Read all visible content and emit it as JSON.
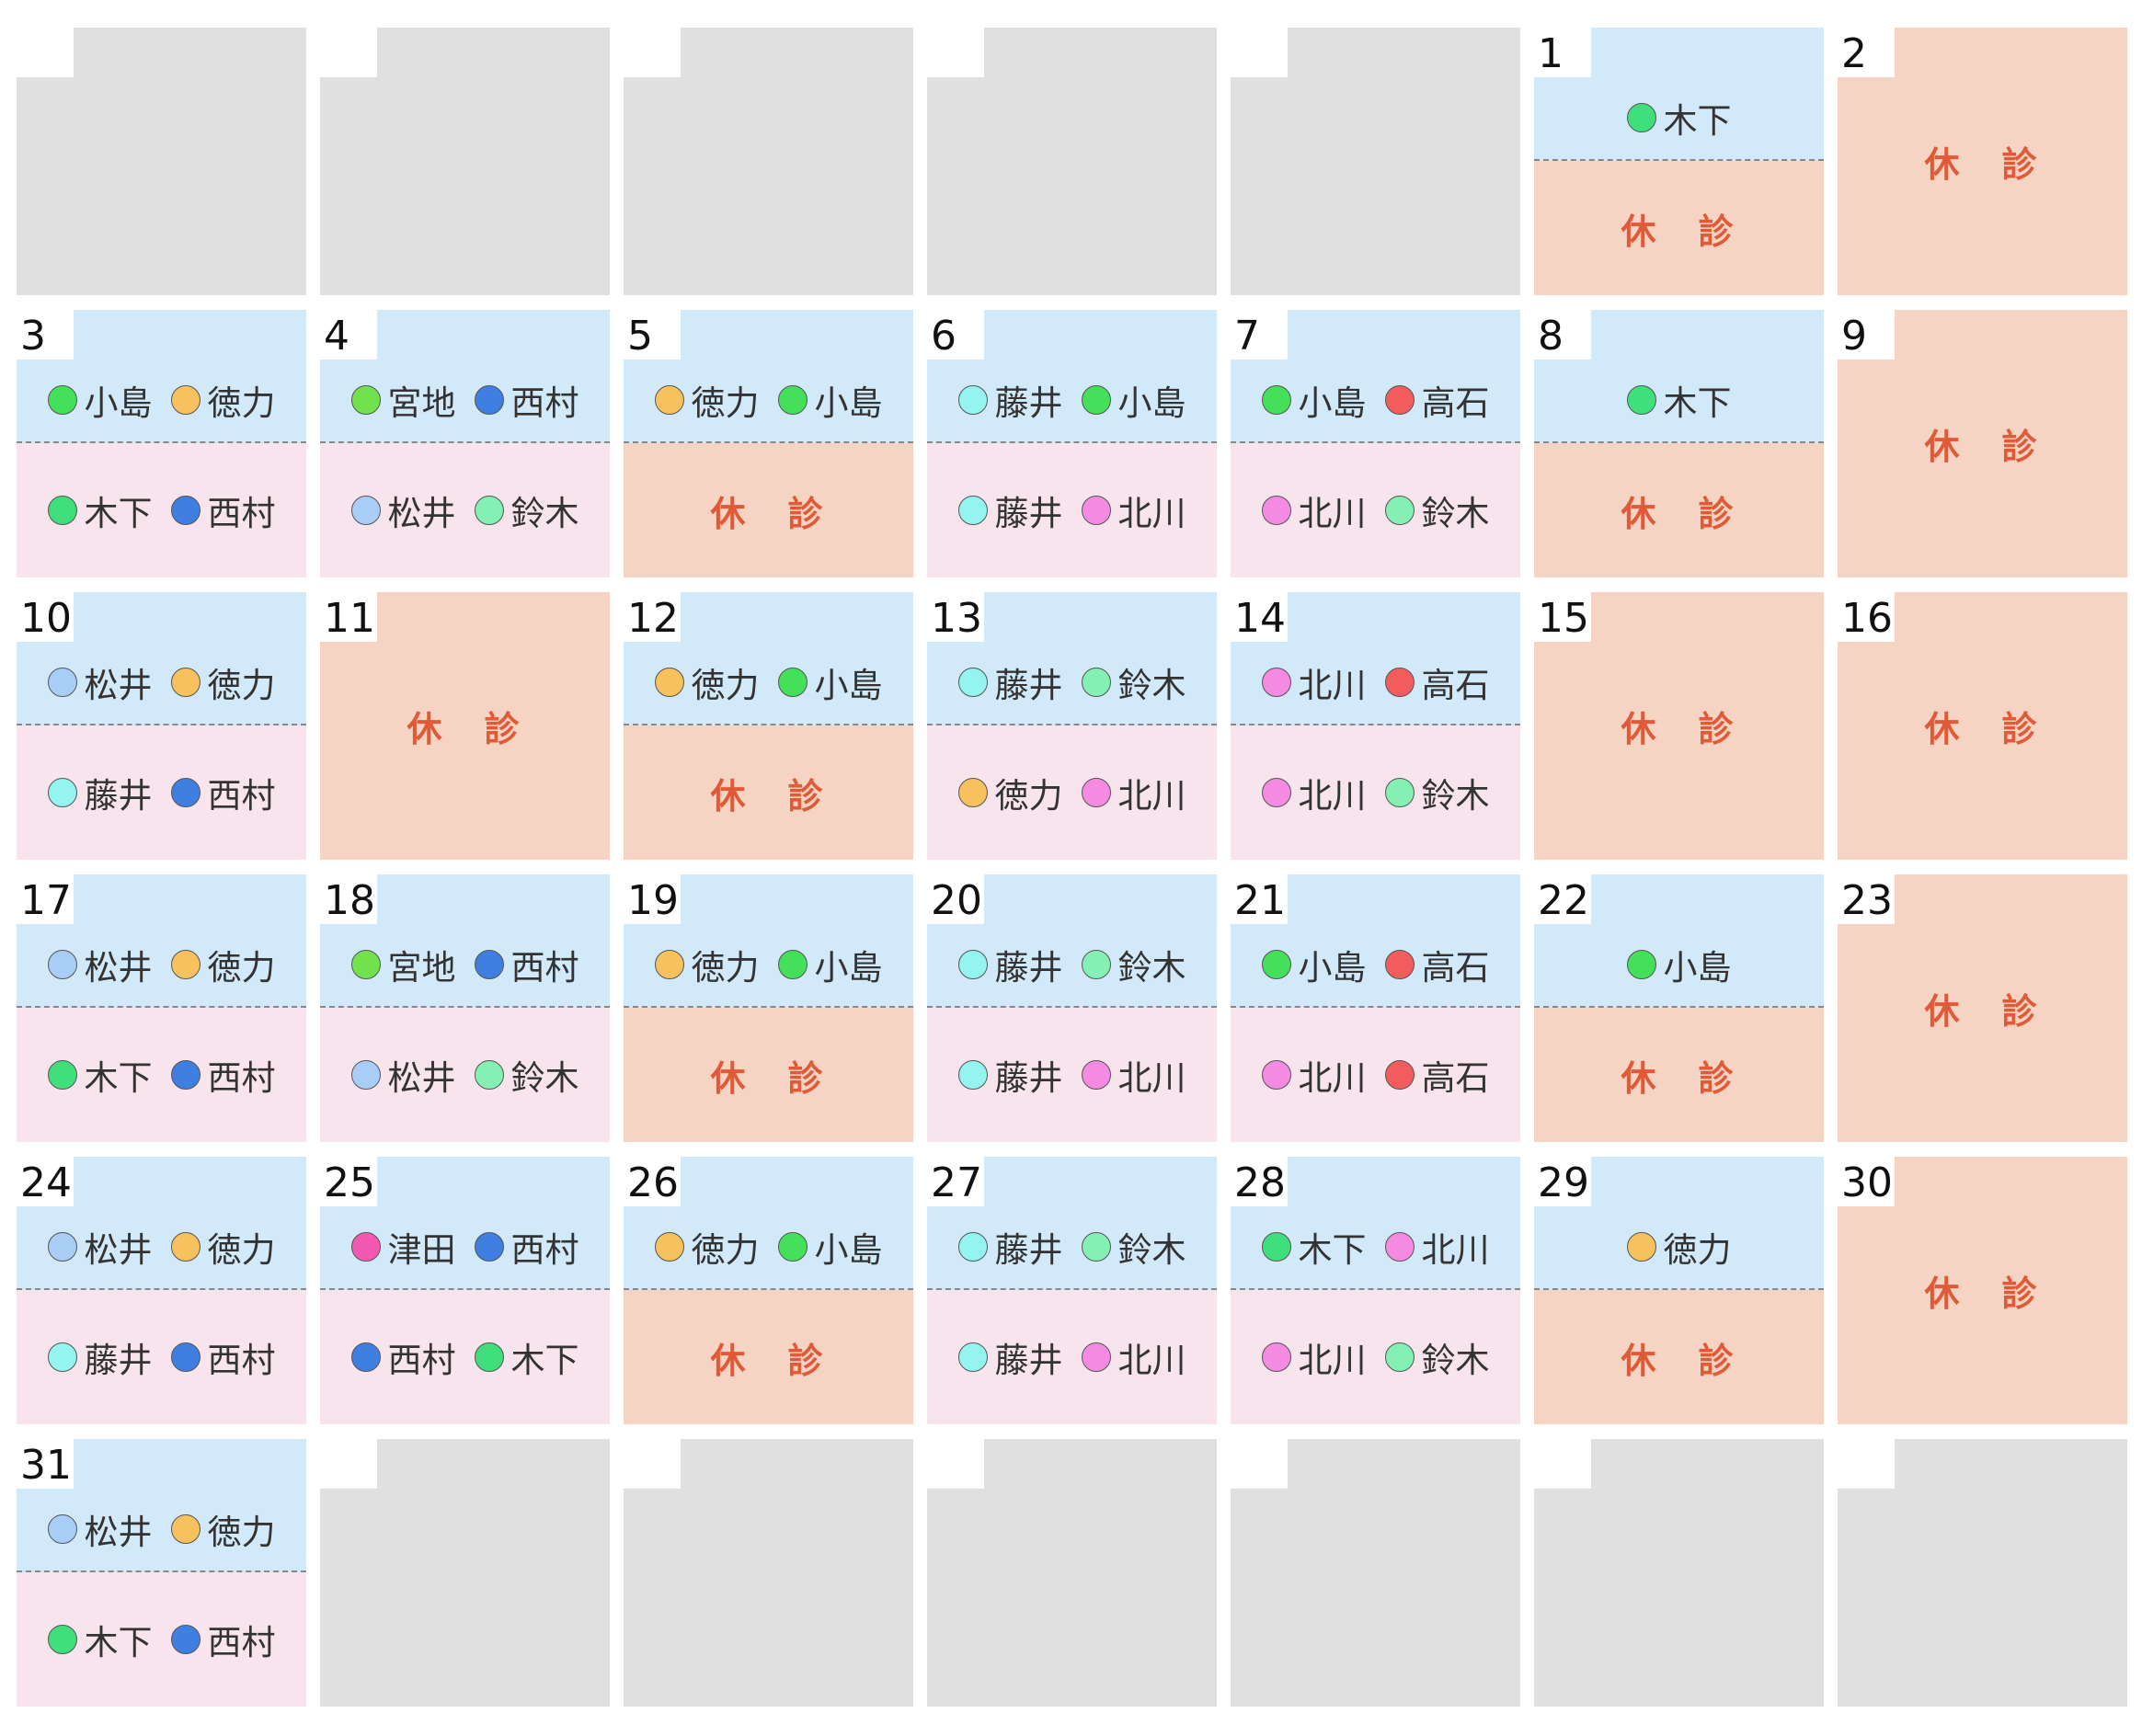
{
  "doctor_colors": {
    "木下": "#3fdf7c",
    "小島": "#45e05a",
    "徳力": "#f7c25e",
    "宮地": "#72e24c",
    "西村": "#3f7fe2",
    "松井": "#a8cdf6",
    "鈴木": "#84f0b4",
    "藤井": "#94f4f0",
    "北川": "#f58ae2",
    "高石": "#f35c5c",
    "津田": "#f25ab2"
  },
  "days": [
    null,
    null,
    null,
    null,
    null,
    {
      "day": 1,
      "am": [
        "木下"
      ],
      "pm": "休　診"
    },
    {
      "day": 2,
      "closed": "休　診"
    },
    {
      "day": 3,
      "am": [
        "小島",
        "徳力"
      ],
      "pm": [
        "木下",
        "西村"
      ]
    },
    {
      "day": 4,
      "am": [
        "宮地",
        "西村"
      ],
      "pm": [
        "松井",
        "鈴木"
      ]
    },
    {
      "day": 5,
      "am": [
        "徳力",
        "小島"
      ],
      "pm": "休　診"
    },
    {
      "day": 6,
      "am": [
        "藤井",
        "小島"
      ],
      "pm": [
        "藤井",
        "北川"
      ]
    },
    {
      "day": 7,
      "am": [
        "小島",
        "高石"
      ],
      "pm": [
        "北川",
        "鈴木"
      ]
    },
    {
      "day": 8,
      "am": [
        "木下"
      ],
      "pm": "休　診"
    },
    {
      "day": 9,
      "closed": "休　診"
    },
    {
      "day": 10,
      "am": [
        "松井",
        "徳力"
      ],
      "pm": [
        "藤井",
        "西村"
      ]
    },
    {
      "day": 11,
      "closed": "休　診"
    },
    {
      "day": 12,
      "am": [
        "徳力",
        "小島"
      ],
      "pm": "休　診"
    },
    {
      "day": 13,
      "am": [
        "藤井",
        "鈴木"
      ],
      "pm": [
        "徳力",
        "北川"
      ]
    },
    {
      "day": 14,
      "am": [
        "北川",
        "高石"
      ],
      "pm": [
        "北川",
        "鈴木"
      ]
    },
    {
      "day": 15,
      "closed": "休　診"
    },
    {
      "day": 16,
      "closed": "休　診"
    },
    {
      "day": 17,
      "am": [
        "松井",
        "徳力"
      ],
      "pm": [
        "木下",
        "西村"
      ]
    },
    {
      "day": 18,
      "am": [
        "宮地",
        "西村"
      ],
      "pm": [
        "松井",
        "鈴木"
      ]
    },
    {
      "day": 19,
      "am": [
        "徳力",
        "小島"
      ],
      "pm": "休　診"
    },
    {
      "day": 20,
      "am": [
        "藤井",
        "鈴木"
      ],
      "pm": [
        "藤井",
        "北川"
      ]
    },
    {
      "day": 21,
      "am": [
        "小島",
        "高石"
      ],
      "pm": [
        "北川",
        "高石"
      ]
    },
    {
      "day": 22,
      "am": [
        "小島"
      ],
      "pm": "休　診"
    },
    {
      "day": 23,
      "closed": "休　診"
    },
    {
      "day": 24,
      "am": [
        "松井",
        "徳力"
      ],
      "pm": [
        "藤井",
        "西村"
      ]
    },
    {
      "day": 25,
      "am": [
        "津田",
        "西村"
      ],
      "pm": [
        "西村",
        "木下"
      ]
    },
    {
      "day": 26,
      "am": [
        "徳力",
        "小島"
      ],
      "pm": "休　診"
    },
    {
      "day": 27,
      "am": [
        "藤井",
        "鈴木"
      ],
      "pm": [
        "藤井",
        "北川"
      ]
    },
    {
      "day": 28,
      "am": [
        "木下",
        "北川"
      ],
      "pm": [
        "北川",
        "鈴木"
      ]
    },
    {
      "day": 29,
      "am": [
        "徳力"
      ],
      "pm": "休　診"
    },
    {
      "day": 30,
      "closed": "休　診"
    },
    {
      "day": 31,
      "am": [
        "松井",
        "徳力"
      ],
      "pm": [
        "木下",
        "西村"
      ]
    },
    null,
    null,
    null,
    null,
    null,
    null
  ]
}
